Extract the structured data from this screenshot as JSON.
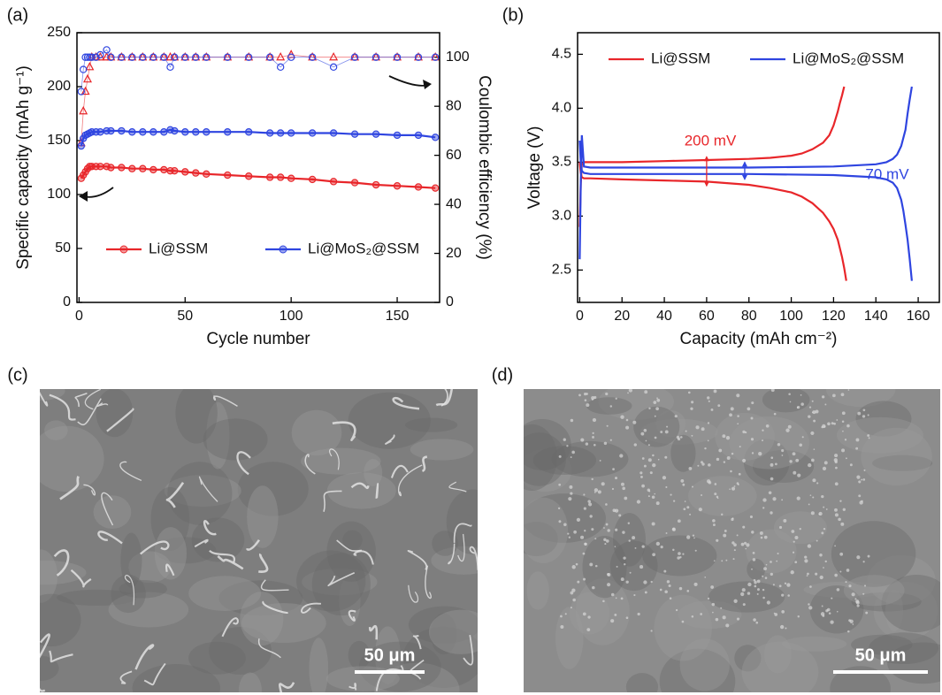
{
  "chart_data": [
    {
      "type": "line",
      "panel_label": "(a)",
      "xlabel": "Cycle number",
      "ylabel": "Specific capacity (mAh g⁻¹)",
      "y2label": "Coulombic efficiency (%)",
      "xlim": [
        -1,
        170
      ],
      "xticks": [
        0,
        50,
        100,
        150
      ],
      "ylim": [
        0,
        250
      ],
      "yticks": [
        0,
        50,
        100,
        150,
        200,
        250
      ],
      "y2lim": [
        0,
        110
      ],
      "y2ticks": [
        0,
        20,
        40,
        60,
        80,
        100
      ],
      "legend": "lower center",
      "markers": true,
      "x": [
        1,
        2,
        3,
        4,
        5,
        6,
        8,
        10,
        13,
        15,
        20,
        25,
        30,
        35,
        40,
        43,
        45,
        50,
        55,
        60,
        70,
        80,
        90,
        95,
        100,
        110,
        120,
        130,
        140,
        150,
        160,
        168
      ],
      "series": [
        {
          "name": "Li@SSM",
          "color": "#e8262a",
          "values": [
            115,
            118,
            121,
            124,
            126,
            126,
            126,
            126,
            126,
            125,
            125,
            124,
            124,
            123,
            123,
            122,
            122,
            121,
            120,
            119,
            118,
            117,
            116,
            116,
            115,
            114,
            112,
            111,
            109,
            108,
            107,
            106
          ],
          "ce": {
            "axis": "y2",
            "marker": "triangle",
            "values": [
              65,
              78,
              86,
              91,
              96,
              100,
              100,
              100,
              100,
              100,
              100,
              100,
              100,
              100,
              100,
              100,
              100,
              100,
              100,
              100,
              100,
              100,
              100,
              100,
              101,
              100,
              100,
              100,
              100,
              100,
              100,
              100
            ]
          }
        },
        {
          "name": "Li@MoS₂@SSM",
          "color": "#2f45e0",
          "values": [
            145,
            152,
            155,
            156,
            157,
            158,
            158,
            158,
            159,
            159,
            159,
            158,
            158,
            158,
            158,
            160,
            159,
            158,
            158,
            158,
            158,
            158,
            157,
            157,
            157,
            157,
            157,
            156,
            156,
            155,
            155,
            153
          ],
          "ce": {
            "axis": "y2",
            "marker": "circle",
            "values": [
              86,
              95,
              100,
              100,
              100,
              100,
              100,
              101,
              103,
              100,
              100,
              100,
              100,
              100,
              100,
              96,
              100,
              100,
              100,
              100,
              100,
              100,
              100,
              96,
              100,
              100,
              96,
              100,
              100,
              100,
              100,
              100
            ]
          }
        }
      ]
    },
    {
      "type": "line",
      "panel_label": "(b)",
      "xlabel": "Capacity (mAh cm⁻²)",
      "ylabel": "Voltage (V)",
      "xlim": [
        -1,
        170
      ],
      "xticks": [
        0,
        20,
        40,
        60,
        80,
        100,
        120,
        140,
        160
      ],
      "ylim": [
        2.2,
        4.7
      ],
      "yticks": [
        2.5,
        {
          "value": 3,
          "label": "3.0"
        },
        3.5,
        {
          "value": 4,
          "label": "4.0"
        },
        4.5
      ],
      "legend": "upper left",
      "annotations": [
        {
          "text": "200 mV",
          "color": "#e8262a"
        },
        {
          "text": "70 mV",
          "color": "#2f45e0"
        }
      ],
      "series": [
        {
          "name": "Li@SSM",
          "color": "#e8262a",
          "charge": {
            "x": [
              0,
              0.5,
              1,
              2,
              5,
              20,
              40,
              60,
              80,
              90,
              100,
              105,
              110,
              115,
              118,
              120,
              122,
              123,
              124,
              125
            ],
            "values": [
              2.9,
              3.3,
              3.48,
              3.5,
              3.5,
              3.5,
              3.51,
              3.52,
              3.53,
              3.54,
              3.56,
              3.58,
              3.62,
              3.68,
              3.75,
              3.84,
              3.97,
              4.05,
              4.12,
              4.2
            ]
          },
          "discharge": {
            "x": [
              0,
              0.5,
              1,
              2,
              5,
              20,
              40,
              60,
              80,
              90,
              100,
              105,
              110,
              115,
              118,
              120,
              122,
              124,
              125,
              126
            ],
            "values": [
              3.5,
              3.4,
              3.36,
              3.35,
              3.35,
              3.34,
              3.33,
              3.32,
              3.29,
              3.26,
              3.22,
              3.18,
              3.12,
              3.03,
              2.95,
              2.88,
              2.78,
              2.62,
              2.52,
              2.4
            ]
          }
        },
        {
          "name": "Li@MoS₂@SSM",
          "color": "#2f45e0",
          "charge": {
            "x": [
              0,
              0.5,
              1,
              2,
              5,
              40,
              80,
              120,
              140,
              145,
              148,
              150,
              152,
              154,
              155,
              156,
              157
            ],
            "values": [
              2.6,
              3.3,
              3.75,
              3.46,
              3.45,
              3.45,
              3.45,
              3.46,
              3.48,
              3.5,
              3.53,
              3.57,
              3.65,
              3.8,
              3.95,
              4.08,
              4.2
            ]
          },
          "discharge": {
            "x": [
              0,
              0.5,
              1,
              2,
              5,
              40,
              80,
              120,
              140,
              145,
              148,
              150,
              152,
              153,
              154,
              155,
              156,
              157
            ],
            "values": [
              3.7,
              3.5,
              3.42,
              3.4,
              3.39,
              3.39,
              3.39,
              3.38,
              3.36,
              3.34,
              3.31,
              3.26,
              3.15,
              3.05,
              2.92,
              2.78,
              2.6,
              2.4
            ]
          }
        }
      ]
    }
  ],
  "images": [
    {
      "label": "(c)",
      "scale_bar": "50 μm"
    },
    {
      "label": "(d)",
      "scale_bar": "50 μm"
    }
  ]
}
